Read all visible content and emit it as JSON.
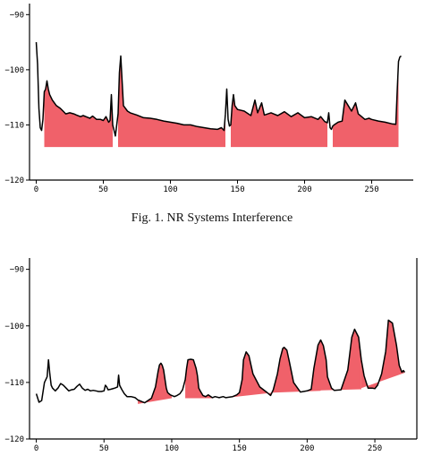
{
  "caption": "Fig. 1.  NR Systems Interference",
  "chart_data": [
    {
      "type": "line",
      "xlim": [
        -5,
        281
      ],
      "ylim": [
        -120,
        -88
      ],
      "xticks": [
        0,
        50,
        100,
        150,
        200,
        250
      ],
      "xtick_labels": [
        "0",
        "50",
        "100",
        "150",
        "200",
        "250"
      ],
      "yticks": [
        -90,
        -100,
        -110,
        -120
      ],
      "ytick_labels": [
        "−90",
        "−100",
        "−110",
        "−120"
      ],
      "fill_color": "#f0616a",
      "line_color": "#000000",
      "fill_base": -114,
      "fill_regions": [
        [
          6,
          57
        ],
        [
          61,
          141
        ],
        [
          145,
          217
        ],
        [
          221,
          270
        ]
      ],
      "series": [
        {
          "x": [
            0,
            1,
            2,
            3,
            4,
            5,
            6,
            7,
            8,
            9,
            10,
            12,
            15,
            18,
            20,
            22,
            25,
            28,
            30,
            33,
            35,
            38,
            40,
            42,
            45,
            48,
            50,
            52,
            54,
            55,
            56,
            57,
            58,
            59,
            60,
            61,
            62,
            63,
            64,
            65,
            68,
            70,
            75,
            80,
            85,
            90,
            95,
            100,
            105,
            110,
            115,
            120,
            125,
            130,
            135,
            138,
            140,
            141,
            142,
            143,
            144,
            145,
            146,
            147,
            148,
            150,
            155,
            160,
            163,
            165,
            168,
            170,
            175,
            180,
            185,
            190,
            195,
            200,
            205,
            210,
            212,
            215,
            217,
            218,
            219,
            220,
            221,
            222,
            225,
            228,
            230,
            235,
            238,
            240,
            245,
            248,
            250,
            255,
            260,
            265,
            268,
            269,
            270,
            271,
            272
          ],
          "y": [
            -95,
            -99,
            -107,
            -110.5,
            -111,
            -109,
            -104,
            -103.5,
            -102,
            -103.5,
            -104.5,
            -105.5,
            -106.5,
            -107,
            -107.5,
            -108,
            -107.8,
            -108,
            -108.2,
            -108.5,
            -108.3,
            -108.6,
            -108.8,
            -108.4,
            -109,
            -109,
            -109.2,
            -108.5,
            -109.5,
            -109.2,
            -104.5,
            -110,
            -111,
            -112,
            -110,
            -108,
            -100.5,
            -97.5,
            -102,
            -106.5,
            -107.5,
            -107.8,
            -108.2,
            -108.7,
            -108.8,
            -109,
            -109.3,
            -109.5,
            -109.7,
            -110,
            -110,
            -110.3,
            -110.5,
            -110.7,
            -110.8,
            -110.5,
            -111,
            -108,
            -103.5,
            -109,
            -110.2,
            -110,
            -106.5,
            -104.5,
            -106.5,
            -107.2,
            -107.5,
            -108.3,
            -105.5,
            -107.8,
            -106,
            -108.2,
            -107.8,
            -108.3,
            -107.6,
            -108.5,
            -107.8,
            -108.7,
            -108.5,
            -109,
            -108.5,
            -109.4,
            -109.6,
            -107.8,
            -110.5,
            -110.8,
            -110.2,
            -110,
            -109.5,
            -109.3,
            -105.5,
            -107.5,
            -106,
            -108,
            -109,
            -108.8,
            -109,
            -109.3,
            -109.5,
            -109.8,
            -109.9,
            -104,
            -98.5,
            -97.7,
            -97.5
          ]
        }
      ]
    },
    {
      "type": "line",
      "xlim": [
        -5,
        281
      ],
      "ylim": [
        -120,
        -88
      ],
      "xticks": [
        0,
        50,
        100,
        150,
        200,
        250
      ],
      "xtick_labels": [
        "0",
        "50",
        "100",
        "150",
        "200",
        "250"
      ],
      "yticks": [
        -90,
        -100,
        -110,
        -120
      ],
      "ytick_labels": [
        "−90",
        "−100",
        "−110",
        "−120"
      ],
      "fill_color": "#f0616a",
      "line_color": "#000000",
      "fill_regions": [
        {
          "x0": 75,
          "y0": -113.8,
          "x1": 100,
          "y1": -112.8
        },
        {
          "x0": 110,
          "y0": -112.8,
          "x1": 130,
          "y1": -112.8
        },
        {
          "x0": 145,
          "y0": -112.6,
          "x1": 175,
          "y1": -111.8
        },
        {
          "x0": 175,
          "y0": -111.8,
          "x1": 210,
          "y1": -111.5
        },
        {
          "x0": 210,
          "y0": -111.4,
          "x1": 240,
          "y1": -111.2
        },
        {
          "x0": 240,
          "y0": -111,
          "x1": 272,
          "y1": -108.3
        }
      ],
      "series": [
        {
          "x": [
            0,
            2,
            4,
            6,
            8,
            9,
            10,
            11,
            12,
            14,
            16,
            18,
            20,
            22,
            24,
            26,
            28,
            30,
            32,
            34,
            36,
            38,
            40,
            42,
            44,
            46,
            48,
            50,
            51,
            52,
            53,
            55,
            58,
            60,
            60.8,
            61.5,
            63,
            65,
            67,
            70,
            73,
            75,
            80,
            85,
            88,
            90,
            91,
            92,
            93,
            94,
            95,
            96,
            97,
            98,
            99,
            100,
            102,
            104,
            106,
            108,
            110,
            111,
            112,
            114,
            116,
            118,
            119,
            120,
            121,
            123,
            125,
            127,
            130,
            132,
            135,
            138,
            140,
            145,
            148,
            150,
            152,
            153,
            155,
            157,
            160,
            165,
            170,
            173,
            175,
            178,
            180,
            182,
            183,
            185,
            187,
            190,
            195,
            200,
            203,
            205,
            208,
            210,
            212,
            214,
            215,
            218,
            220,
            225,
            230,
            233,
            235,
            238,
            240,
            242,
            244,
            245,
            248,
            250,
            252,
            255,
            258,
            260,
            263,
            266,
            268,
            270,
            271,
            272
          ],
          "y": [
            -112,
            -113.5,
            -113.2,
            -110,
            -109,
            -106,
            -108.5,
            -110.5,
            -111,
            -111.5,
            -111,
            -110.2,
            -110.5,
            -111,
            -111.5,
            -111.3,
            -111.2,
            -110.7,
            -110.3,
            -111,
            -111.4,
            -111.2,
            -111.5,
            -111.4,
            -111.5,
            -111.6,
            -111.6,
            -111.5,
            -110.5,
            -110.8,
            -111.3,
            -111.2,
            -111,
            -110.8,
            -108.7,
            -110.5,
            -111.2,
            -112,
            -112.5,
            -112.5,
            -112.7,
            -113.1,
            -113.6,
            -112.8,
            -110.8,
            -108,
            -106.9,
            -106.6,
            -107,
            -107.8,
            -109.4,
            -111,
            -111.8,
            -112,
            -112.2,
            -112.3,
            -112.5,
            -112.3,
            -112,
            -111.3,
            -109.5,
            -107.5,
            -106,
            -105.9,
            -106,
            -107.5,
            -108.8,
            -111,
            -111.5,
            -112.3,
            -112.5,
            -112.2,
            -112.7,
            -112.5,
            -112.7,
            -112.5,
            -112.7,
            -112.5,
            -112.2,
            -111.8,
            -109.5,
            -106,
            -104.6,
            -105.3,
            -108.5,
            -110.8,
            -111.7,
            -112.3,
            -111.3,
            -108.5,
            -105.8,
            -104,
            -103.8,
            -104.3,
            -106.5,
            -110,
            -111.7,
            -111.5,
            -111.2,
            -107.5,
            -103.4,
            -102.5,
            -103.5,
            -106,
            -109,
            -111,
            -111.4,
            -111.3,
            -107.8,
            -102,
            -100.6,
            -102,
            -106,
            -108.8,
            -110.3,
            -111,
            -111,
            -111.1,
            -110.5,
            -108.5,
            -104.5,
            -99,
            -99.5,
            -103.5,
            -107,
            -108.2,
            -107.9,
            -108.2
          ]
        }
      ]
    }
  ]
}
